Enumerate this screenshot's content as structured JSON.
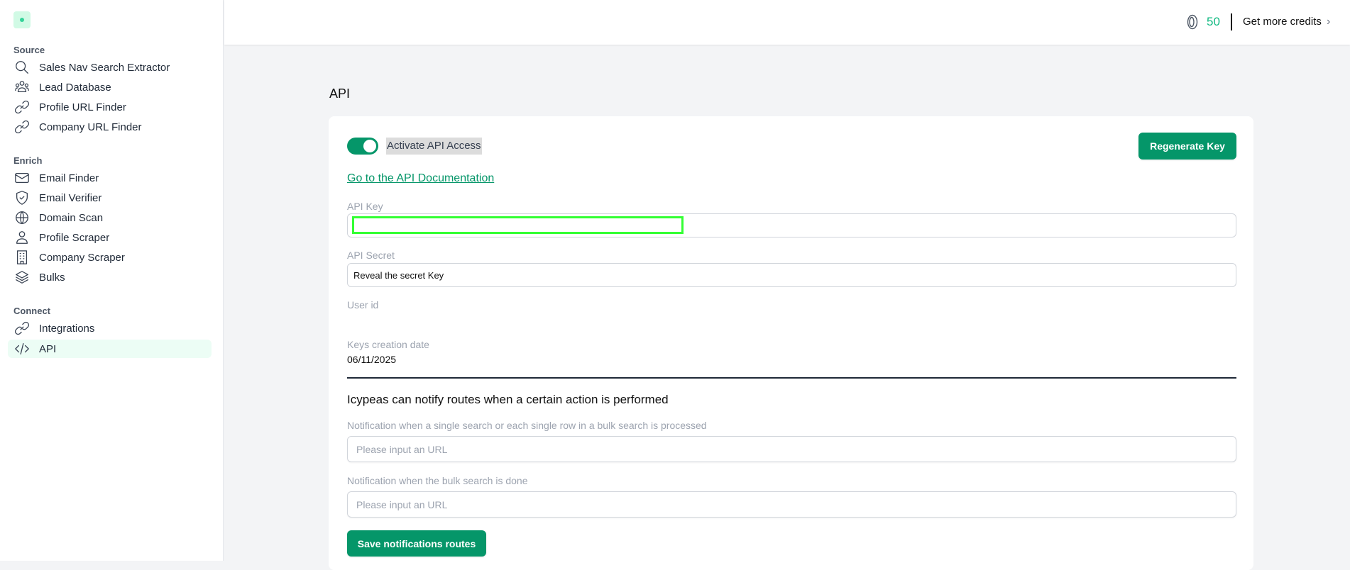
{
  "sidebar": {
    "sections": [
      {
        "label": "Source",
        "items": [
          {
            "label": "Sales Nav Search Extractor",
            "icon": "search-icon"
          },
          {
            "label": "Lead Database",
            "icon": "users-icon"
          },
          {
            "label": "Profile URL Finder",
            "icon": "link-icon"
          },
          {
            "label": "Company URL Finder",
            "icon": "link-icon"
          }
        ]
      },
      {
        "label": "Enrich",
        "items": [
          {
            "label": "Email Finder",
            "icon": "mail-icon"
          },
          {
            "label": "Email Verifier",
            "icon": "shield-check-icon"
          },
          {
            "label": "Domain Scan",
            "icon": "globe-icon"
          },
          {
            "label": "Profile Scraper",
            "icon": "user-icon"
          },
          {
            "label": "Company Scraper",
            "icon": "building-icon"
          },
          {
            "label": "Bulks",
            "icon": "layers-icon"
          }
        ]
      },
      {
        "label": "Connect",
        "items": [
          {
            "label": "Integrations",
            "icon": "link-icon"
          },
          {
            "label": "API",
            "icon": "code-icon",
            "active": true
          }
        ]
      }
    ]
  },
  "header": {
    "credits": "50",
    "get_more": "Get more credits",
    "chevron": "›"
  },
  "page": {
    "title": "API"
  },
  "api": {
    "toggle_label": "Activate API Access",
    "toggle_on": true,
    "regenerate": "Regenerate Key",
    "doc_link": "Go to the API Documentation",
    "key_label": "API Key",
    "key_value": "",
    "secret_label": "API Secret",
    "secret_value": "Reveal the secret Key",
    "user_id_label": "User id",
    "user_id_value": "",
    "date_label": "Keys creation date",
    "date_value": "06/11/2025"
  },
  "notify": {
    "heading": "Icypeas can notify routes when a certain action is performed",
    "single_label": "Notification when a single search or each single row in a bulk search is processed",
    "single_placeholder": "Please input an URL",
    "bulk_label": "Notification when the bulk search is done",
    "bulk_placeholder": "Please input an URL",
    "save": "Save notifications routes"
  },
  "colors": {
    "accent": "#059669",
    "credits": "#10b981",
    "active_bg": "#ecfdf5"
  }
}
